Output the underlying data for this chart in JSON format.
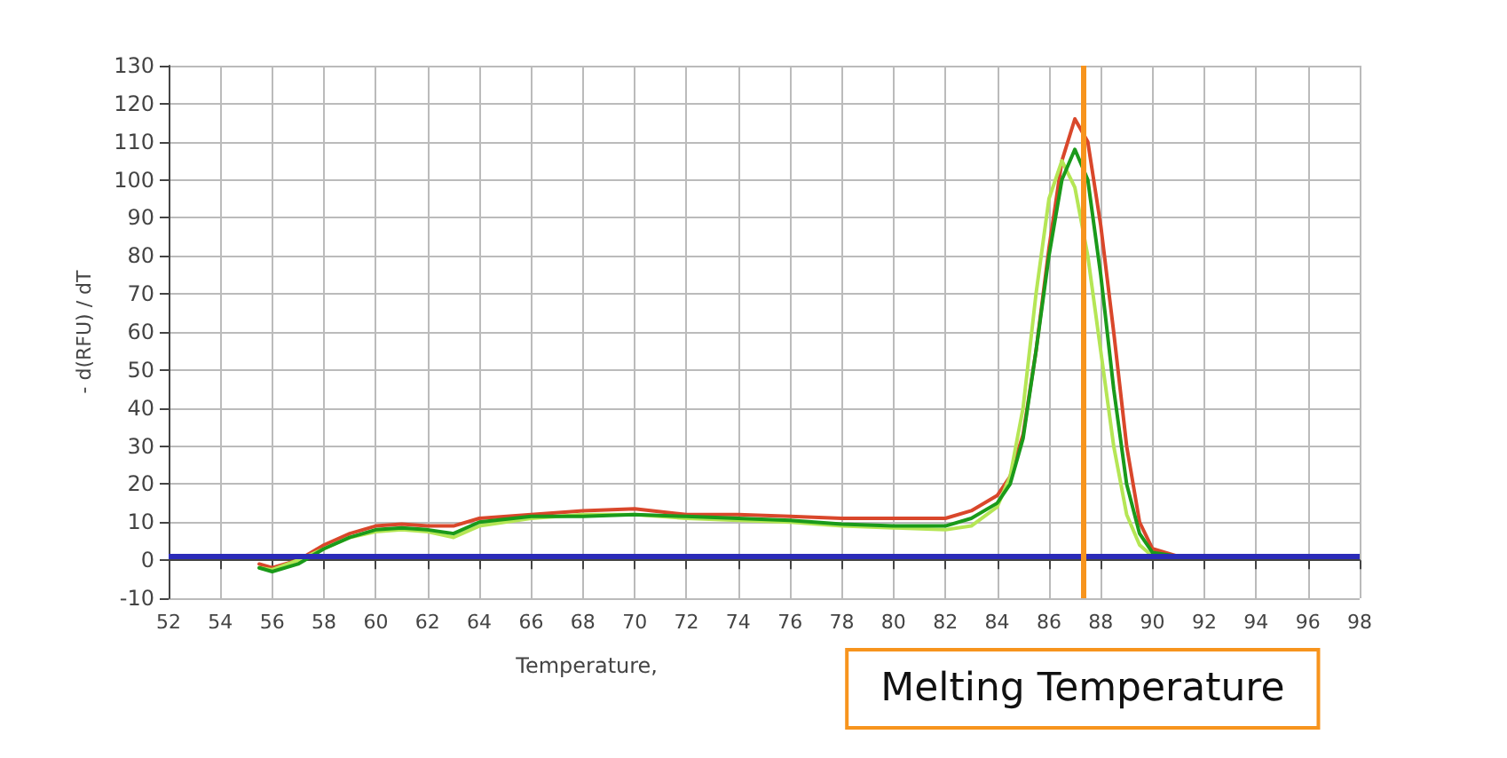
{
  "chart_data": {
    "type": "line",
    "xlabel": "Temperature,",
    "ylabel": "- d(RFU) / dT",
    "xlim": [
      52,
      98
    ],
    "xticks": [
      52,
      54,
      56,
      58,
      60,
      62,
      64,
      66,
      68,
      70,
      72,
      74,
      76,
      78,
      80,
      82,
      84,
      86,
      88,
      90,
      92,
      94,
      96,
      98
    ],
    "ylim": [
      -10,
      130
    ],
    "yticks": [
      -10,
      0,
      10,
      20,
      30,
      40,
      50,
      60,
      70,
      80,
      90,
      100,
      110,
      120,
      130
    ],
    "grid": true,
    "marker": "none",
    "line_style": "solid",
    "x": [
      55.5,
      56,
      57,
      58,
      59,
      60,
      61,
      62,
      63,
      64,
      66,
      68,
      70,
      72,
      74,
      76,
      78,
      80,
      82,
      83,
      84,
      84.5,
      85,
      85.5,
      86,
      86.5,
      87,
      87.5,
      88,
      88.5,
      89,
      89.5,
      90,
      91,
      93
    ],
    "series": [
      {
        "color": "#d9472b",
        "values": [
          -1,
          -2,
          0,
          4,
          7,
          9,
          9.5,
          9,
          9,
          11,
          12,
          13,
          13.5,
          12,
          12,
          11.5,
          11,
          11,
          11,
          13,
          17,
          22,
          33,
          55,
          82,
          105,
          116,
          110,
          88,
          60,
          30,
          10,
          3,
          1,
          null
        ]
      },
      {
        "color": "#b5e655",
        "values": [
          -2,
          -2.5,
          0,
          3,
          6,
          7.5,
          8,
          7.5,
          6,
          9,
          11,
          12,
          12,
          11,
          10.5,
          10,
          9,
          8.5,
          8,
          9,
          14,
          22,
          40,
          70,
          95,
          105,
          98,
          80,
          55,
          30,
          12,
          4,
          1,
          1,
          null
        ]
      },
      {
        "color": "#1a9a1a",
        "values": [
          -2,
          -3,
          -1,
          3,
          6,
          8,
          8.5,
          8,
          7,
          10,
          11.5,
          11.5,
          12,
          11.5,
          11,
          10.5,
          9.5,
          9,
          9,
          11,
          15,
          20,
          32,
          55,
          80,
          100,
          108,
          100,
          75,
          45,
          20,
          7,
          2,
          1,
          1
        ]
      }
    ],
    "ref_lines": [
      {
        "axis": "y",
        "value": 1,
        "color": "#2b2bb8",
        "line_style": "solid"
      },
      {
        "axis": "x",
        "value": 87.3,
        "label": "Melting Temperature",
        "color": "#f7941d",
        "line_style": "solid"
      }
    ]
  }
}
